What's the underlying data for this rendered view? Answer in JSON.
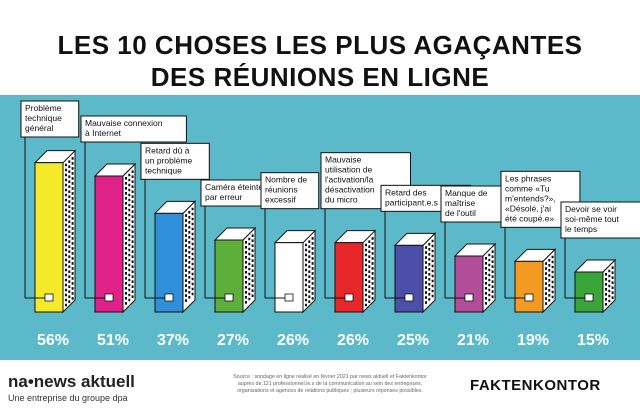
{
  "header": {
    "title_line1": "LES 10 CHOSES LES PLUS AGAÇANTES",
    "title_line2": "DES RÉUNIONS EN LIGNE"
  },
  "chart_data": {
    "type": "bar",
    "ylim": [
      0,
      60
    ],
    "categories": [
      [
        "Problème",
        "technique",
        "général"
      ],
      [
        "Mauvaise connexion",
        "à Internet"
      ],
      [
        "Retard dû à",
        "un problème",
        "technique"
      ],
      [
        "Caméra éteinte",
        "par erreur"
      ],
      [
        "Nombre de",
        "réunions",
        "excessif"
      ],
      [
        "Mauvaise",
        "utilisation de",
        "l'activation/la",
        "désactivation",
        "du micro"
      ],
      [
        "Retard des",
        "participant.e.s"
      ],
      [
        "Manque de",
        "maîtrise",
        "de l'outil"
      ],
      [
        "Les phrases",
        "comme «Tu",
        "m'entends?»,",
        "«Désolé, j'ai",
        "été coupé.e»"
      ],
      [
        "Devoir se voir",
        "soi-même tout",
        "le temps"
      ]
    ],
    "values": [
      56,
      51,
      37,
      27,
      26,
      26,
      25,
      21,
      19,
      15
    ],
    "value_labels": [
      "56%",
      "51%",
      "37%",
      "27%",
      "26%",
      "26%",
      "25%",
      "21%",
      "19%",
      "15%"
    ],
    "colors": [
      "#f5ea2a",
      "#e0218a",
      "#2f8fd8",
      "#5cb03a",
      "#ffffff",
      "#e8272b",
      "#4b4fa8",
      "#b24d9a",
      "#f39a22",
      "#3aa53a"
    ]
  },
  "footer": {
    "brand": "na•news aktuell",
    "tagline": "Une entreprise du groupe dpa",
    "source": "Source : sondage en ligne réalisé en février 2021 par news aktuell et Faktenkontor auprès de 121 professionnel.le.s de la communication au sein des entreprises, organisations et agences de relations publiques ; plusieurs réponses possibles.",
    "logo": "FAKTENKONTOR"
  }
}
